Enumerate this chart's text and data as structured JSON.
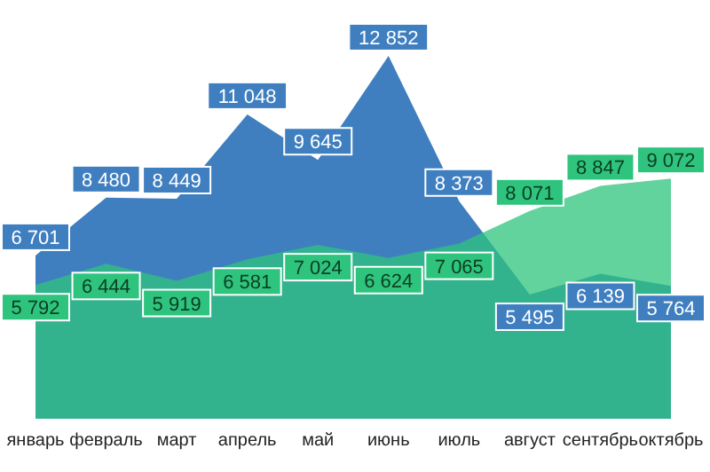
{
  "chart_data": {
    "type": "area",
    "categories": [
      "январь",
      "февраль",
      "март",
      "апрель",
      "май",
      "июнь",
      "июль",
      "август",
      "сентябрь",
      "октябрь"
    ],
    "tick_labels": "x",
    "series": [
      {
        "color": "#3f7fc0",
        "values": [
          6701,
          8480,
          8449,
          11048,
          9645,
          12852,
          8373,
          5495,
          6139,
          5764
        ],
        "value_labels": [
          "6 701",
          "8 480",
          "8 449",
          "11 048",
          "9 645",
          "12 852",
          "8 373",
          "5 495",
          "6 139",
          "5 764"
        ]
      },
      {
        "color": "#2fc47e",
        "values": [
          5792,
          6444,
          5919,
          6581,
          7024,
          6624,
          7065,
          8071,
          8847,
          9072
        ],
        "value_labels": [
          "5 792",
          "6 444",
          "5 919",
          "6 581",
          "7 024",
          "6 624",
          "7 065",
          "8 071",
          "8 847",
          "9 072"
        ]
      }
    ]
  }
}
